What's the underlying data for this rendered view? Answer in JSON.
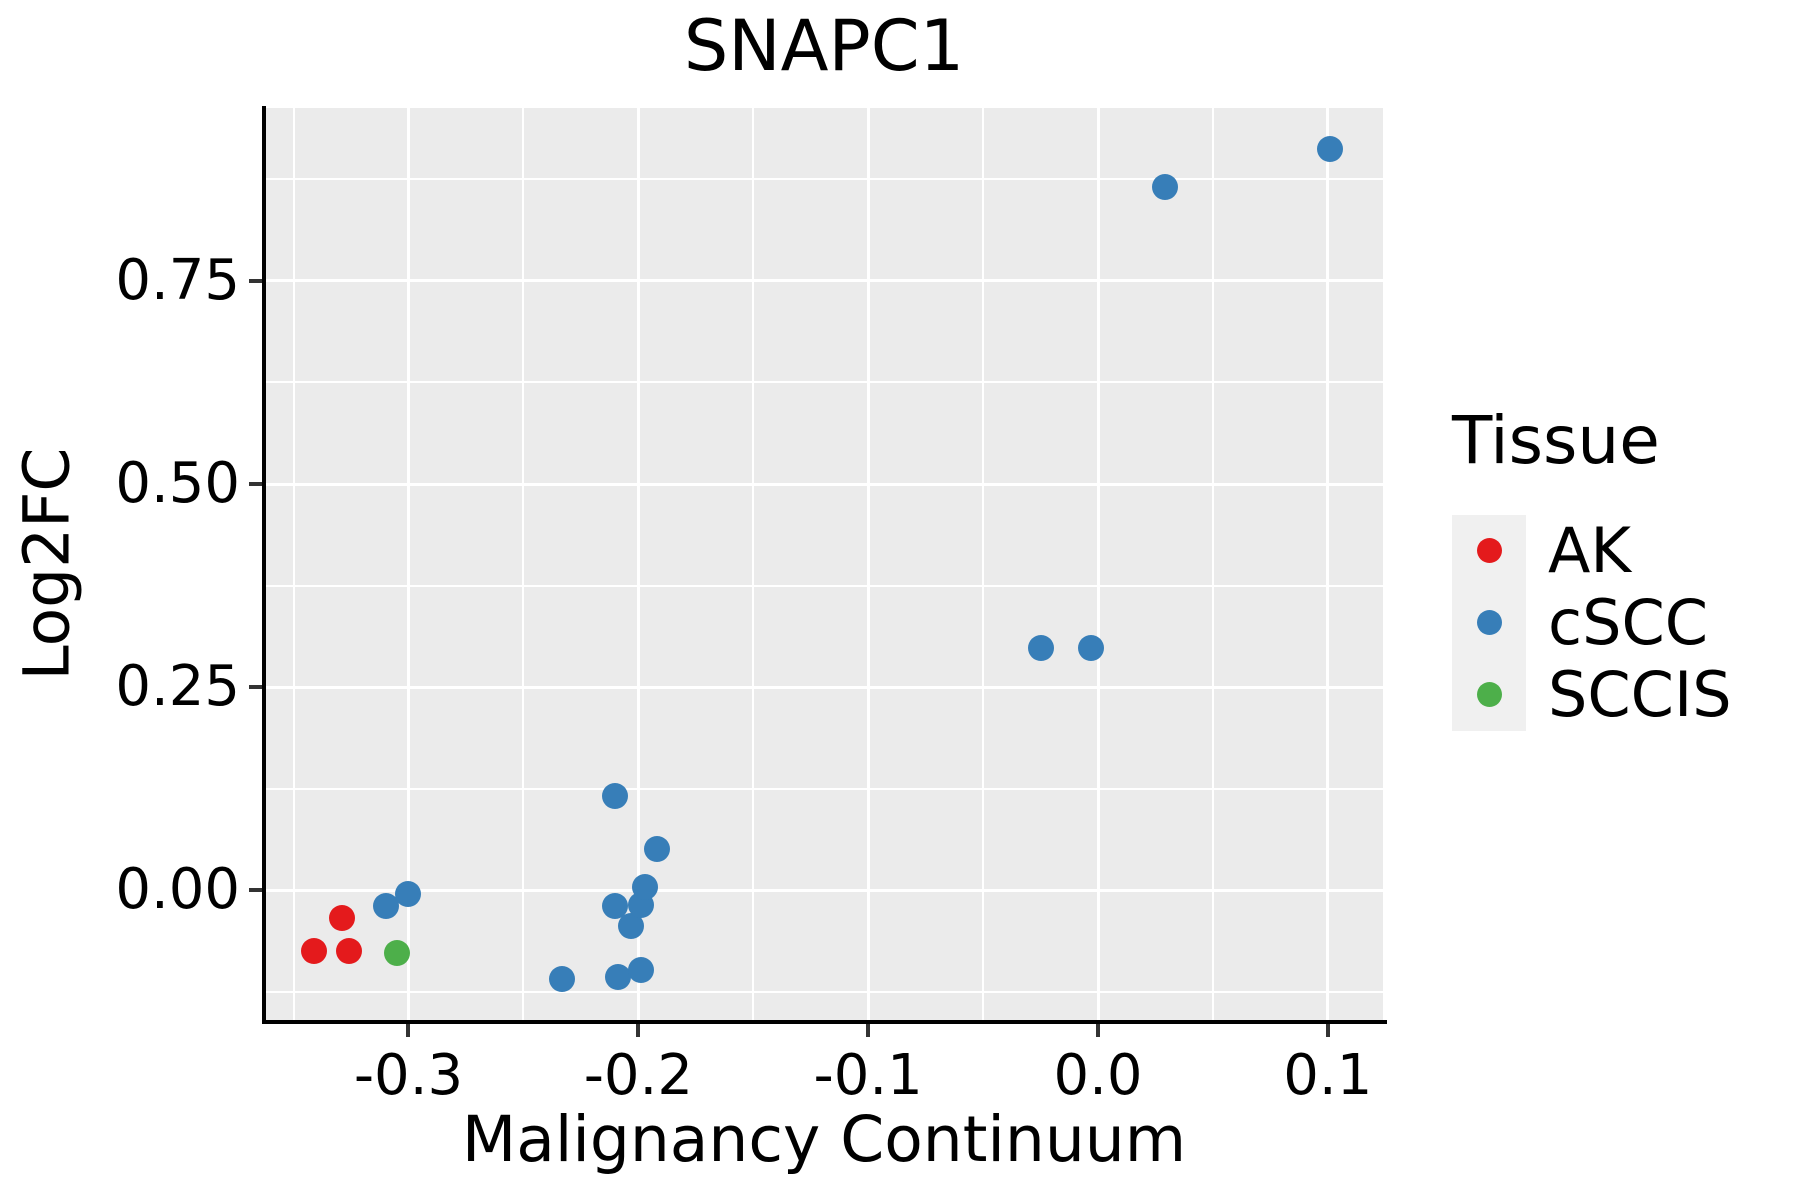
{
  "title": "SNAPC1",
  "chart_data": {
    "type": "scatter",
    "title": "SNAPC1",
    "xlabel": "Malignancy Continuum",
    "ylabel": "Log2FC",
    "xlim": [
      -0.362,
      0.124
    ],
    "ylim": [
      -0.16,
      0.963
    ],
    "x_ticks": [
      -0.3,
      -0.2,
      -0.1,
      0.0,
      0.1
    ],
    "x_tick_labels": [
      "-0.3",
      "-0.2",
      "-0.1",
      "0.0",
      "0.1"
    ],
    "x_minor_ticks": [
      -0.35,
      -0.25,
      -0.15,
      -0.05,
      0.05
    ],
    "y_ticks": [
      0.0,
      0.25,
      0.5,
      0.75
    ],
    "y_tick_labels": [
      "0.00",
      "0.25",
      "0.50",
      "0.75"
    ],
    "y_minor_ticks": [
      -0.125,
      0.125,
      0.375,
      0.625,
      0.875
    ],
    "grid": true,
    "panel_bg": "#EBEBEB",
    "grid_color": "#FFFFFF",
    "legend_position": "right",
    "legend_title": "Tissue",
    "series": [
      {
        "name": "AK",
        "color": "#E41A1C",
        "points": [
          [
            -0.329,
            -0.034
          ],
          [
            -0.341,
            -0.075
          ],
          [
            -0.326,
            -0.075
          ]
        ]
      },
      {
        "name": "cSCC",
        "color": "#377EB8",
        "points": [
          [
            -0.31,
            -0.02
          ],
          [
            -0.3,
            -0.005
          ],
          [
            -0.233,
            -0.11
          ],
          [
            -0.21,
            0.116
          ],
          [
            -0.21,
            -0.02
          ],
          [
            -0.209,
            -0.107
          ],
          [
            -0.203,
            -0.044
          ],
          [
            -0.199,
            -0.018
          ],
          [
            -0.199,
            -0.099
          ],
          [
            -0.197,
            0.004
          ],
          [
            -0.192,
            0.05
          ],
          [
            -0.025,
            0.298
          ],
          [
            -0.003,
            0.298
          ],
          [
            0.029,
            0.866
          ],
          [
            0.101,
            0.913
          ]
        ]
      },
      {
        "name": "SCCIS",
        "color": "#4DAF4A",
        "points": [
          [
            -0.305,
            -0.078
          ]
        ]
      }
    ]
  }
}
